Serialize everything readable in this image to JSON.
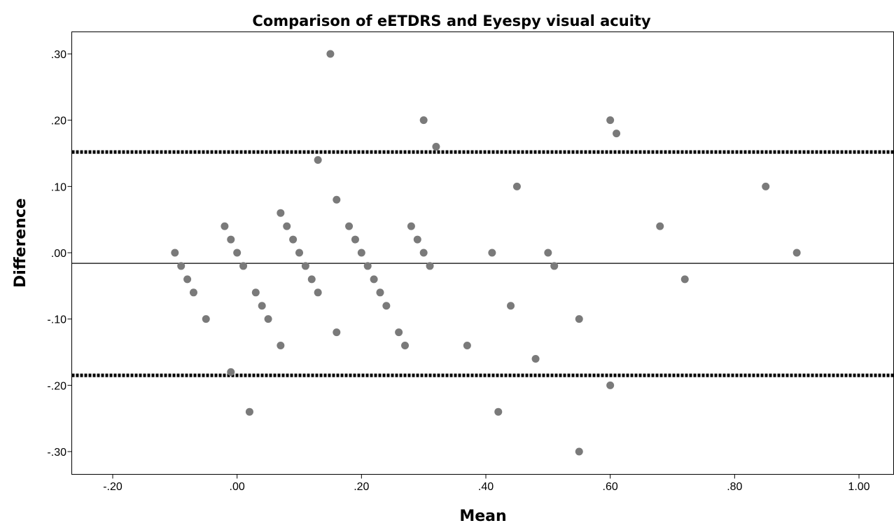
{
  "chart_data": {
    "type": "scatter",
    "title": "Comparison of eETDRS and Eyespy visual acuity",
    "xlabel": "Mean",
    "ylabel": "Difference",
    "xlim": [
      -0.26,
      1.05
    ],
    "ylim": [
      -0.33,
      0.35
    ],
    "xticks": [
      -0.2,
      0.0,
      0.2,
      0.4,
      0.6,
      0.8,
      1.0
    ],
    "xtick_labels": [
      "-.20",
      ".00",
      ".20",
      ".40",
      ".60",
      ".80",
      "1.00"
    ],
    "yticks": [
      0.3,
      0.2,
      0.1,
      0.0,
      -0.1,
      -0.2,
      -0.3
    ],
    "ytick_labels": [
      ".30",
      ".20",
      ".10",
      ".00",
      "-.10",
      "-.20",
      "-.30"
    ],
    "grid": false,
    "reference_lines": {
      "mean_difference": -0.016,
      "upper_limit": 0.152,
      "lower_limit": -0.185
    },
    "points": [
      [
        -0.1,
        0.0
      ],
      [
        -0.09,
        -0.02
      ],
      [
        -0.08,
        -0.04
      ],
      [
        -0.07,
        -0.06
      ],
      [
        -0.05,
        -0.1
      ],
      [
        -0.02,
        0.04
      ],
      [
        -0.01,
        0.02
      ],
      [
        0.0,
        0.0
      ],
      [
        0.01,
        -0.02
      ],
      [
        -0.01,
        -0.18
      ],
      [
        0.02,
        -0.24
      ],
      [
        0.03,
        -0.06
      ],
      [
        0.04,
        -0.08
      ],
      [
        0.05,
        -0.1
      ],
      [
        0.07,
        -0.14
      ],
      [
        0.07,
        0.06
      ],
      [
        0.08,
        0.04
      ],
      [
        0.09,
        0.02
      ],
      [
        0.1,
        0.0
      ],
      [
        0.11,
        -0.02
      ],
      [
        0.12,
        -0.04
      ],
      [
        0.13,
        -0.06
      ],
      [
        0.13,
        0.14
      ],
      [
        0.15,
        0.3
      ],
      [
        0.16,
        0.08
      ],
      [
        0.16,
        -0.12
      ],
      [
        0.18,
        0.04
      ],
      [
        0.19,
        0.02
      ],
      [
        0.2,
        0.0
      ],
      [
        0.21,
        -0.02
      ],
      [
        0.22,
        -0.04
      ],
      [
        0.23,
        -0.06
      ],
      [
        0.24,
        -0.08
      ],
      [
        0.26,
        -0.12
      ],
      [
        0.27,
        -0.14
      ],
      [
        0.28,
        0.04
      ],
      [
        0.29,
        0.02
      ],
      [
        0.3,
        0.0
      ],
      [
        0.31,
        -0.02
      ],
      [
        0.3,
        0.2
      ],
      [
        0.32,
        0.16
      ],
      [
        0.37,
        -0.14
      ],
      [
        0.41,
        0.0
      ],
      [
        0.42,
        -0.24
      ],
      [
        0.44,
        -0.08
      ],
      [
        0.45,
        0.1
      ],
      [
        0.48,
        -0.16
      ],
      [
        0.5,
        0.0
      ],
      [
        0.51,
        -0.02
      ],
      [
        0.55,
        -0.1
      ],
      [
        0.55,
        -0.3
      ],
      [
        0.6,
        0.2
      ],
      [
        0.61,
        0.18
      ],
      [
        0.6,
        -0.2
      ],
      [
        0.68,
        0.04
      ],
      [
        0.72,
        -0.04
      ],
      [
        0.85,
        0.1
      ],
      [
        0.9,
        0.0
      ]
    ]
  }
}
